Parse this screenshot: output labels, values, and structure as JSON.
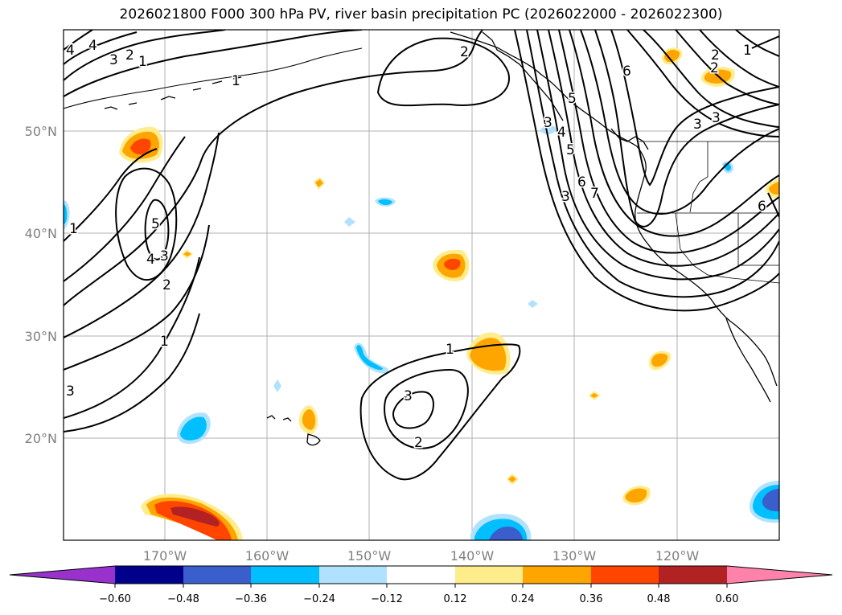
{
  "title": "2026021800 F000 300 hPa PV, river basin precipitation PC (2026022000 - 2026022300)",
  "map": {
    "lat_labels": [
      "50°N",
      "40°N",
      "30°N",
      "20°N"
    ],
    "lon_labels": [
      "170°W",
      "160°W",
      "150°W",
      "140°W",
      "130°W",
      "120°W"
    ],
    "contour_labels": [
      "5",
      "4",
      "3",
      "2",
      "1",
      "1",
      "2",
      "4",
      "5",
      "6",
      "3",
      "7",
      "6",
      "4",
      "3",
      "2",
      "1",
      "3",
      "2",
      "1",
      "5",
      "4",
      "3",
      "2",
      "1",
      "1",
      "3",
      "3",
      "2",
      "3",
      "6"
    ]
  },
  "colorbar": {
    "ticks": [
      "−0.60",
      "−0.48",
      "−0.36",
      "−0.24",
      "−0.12",
      "0.12",
      "0.24",
      "0.36",
      "0.48",
      "0.60"
    ],
    "colors": [
      "#9932CC",
      "#00008B",
      "#3A5FCD",
      "#00BFFF",
      "#B0E2FF",
      "#FFFFFF",
      "#FFEC8B",
      "#FFA500",
      "#FF4500",
      "#B22222",
      "#FF82AB"
    ]
  }
}
